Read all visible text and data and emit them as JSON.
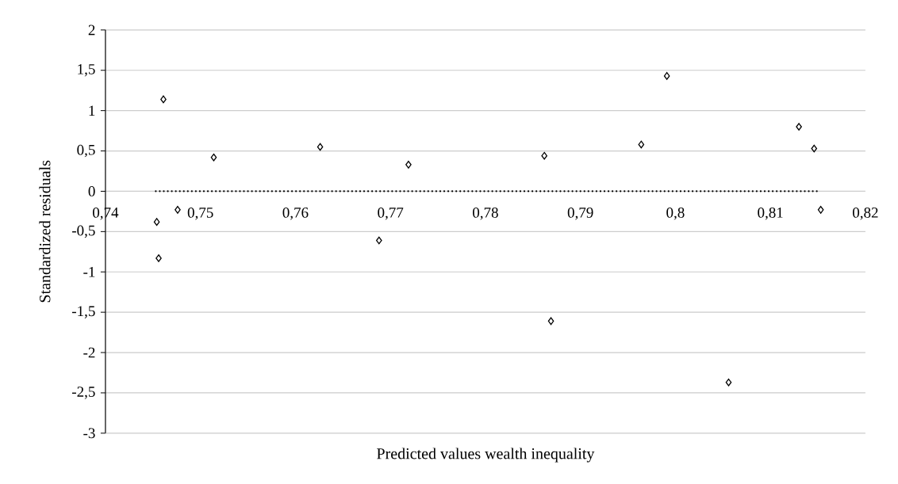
{
  "chart_data": {
    "type": "scatter",
    "xlabel": "Predicted values wealth inequality",
    "ylabel": "Standardized residuals",
    "xlim": [
      0.74,
      0.82
    ],
    "ylim": [
      -3,
      2
    ],
    "xticks": [
      {
        "value": 0.74,
        "label": "0,74"
      },
      {
        "value": 0.75,
        "label": "0,75"
      },
      {
        "value": 0.76,
        "label": "0,76"
      },
      {
        "value": 0.77,
        "label": "0,77"
      },
      {
        "value": 0.78,
        "label": "0,78"
      },
      {
        "value": 0.79,
        "label": "0,79"
      },
      {
        "value": 0.8,
        "label": "0,8"
      },
      {
        "value": 0.81,
        "label": "0,81"
      },
      {
        "value": 0.82,
        "label": "0,82"
      }
    ],
    "yticks": [
      -3,
      {
        "value": -2.5,
        "label": "-2,5"
      },
      -2,
      {
        "value": -1.5,
        "label": "-1,5"
      },
      -1,
      {
        "value": -0.5,
        "label": "-0,5"
      },
      0,
      {
        "value": 0.5,
        "label": "0,5"
      },
      1,
      {
        "value": 1.5,
        "label": "1,5"
      },
      2
    ],
    "grid": "y",
    "legend": false,
    "series": [
      {
        "type": "scatter",
        "color": "#000000",
        "marker": "diamond",
        "x": [
          0.7454,
          0.7456,
          0.7461,
          0.7476,
          0.7514,
          0.7626,
          0.7688,
          0.7719,
          0.7862,
          0.7869,
          0.7964,
          0.7991,
          0.8056,
          0.813,
          0.8146,
          0.8153
        ],
        "values": [
          -0.38,
          -0.83,
          1.14,
          -0.23,
          0.42,
          0.55,
          -0.61,
          0.33,
          0.44,
          -1.61,
          0.58,
          1.43,
          -2.37,
          0.8,
          0.53,
          -0.23
        ]
      },
      {
        "type": "line",
        "color": "#000000",
        "marker": "none",
        "line_style": "dotted",
        "x": [
          0.7453,
          0.8152
        ],
        "values": [
          0,
          0
        ]
      }
    ]
  }
}
